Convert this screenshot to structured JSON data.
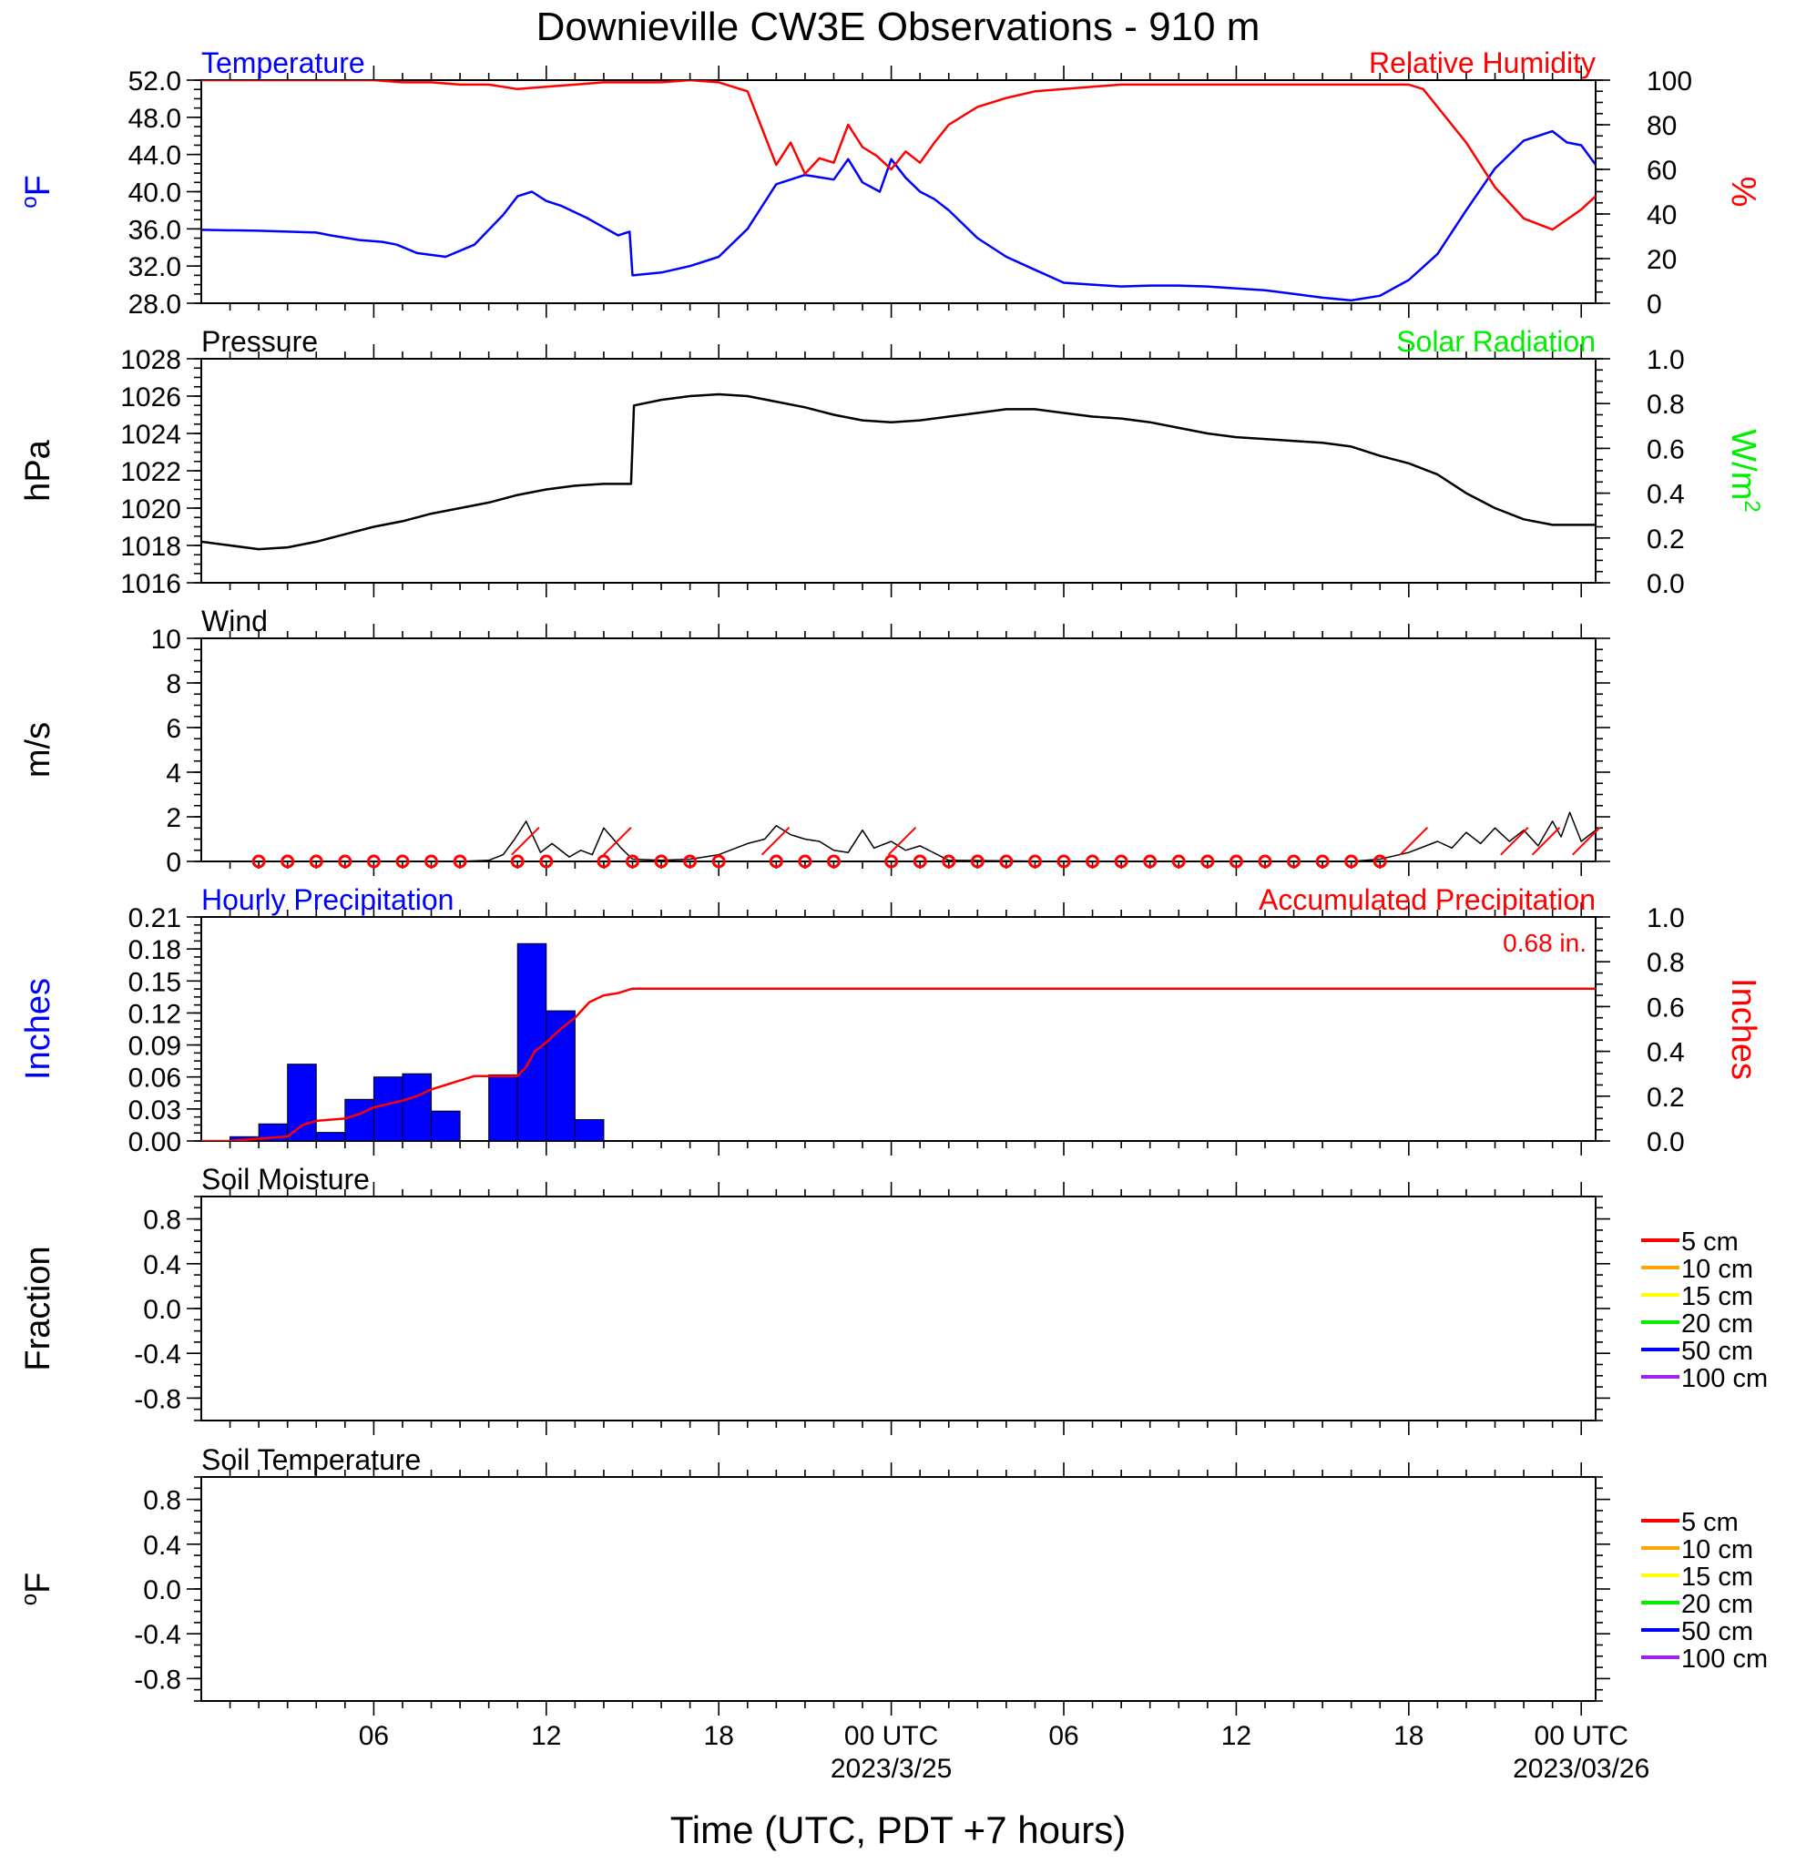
{
  "chart_data": [
    {
      "type": "line",
      "title": "Downieville CW3E Observations - 910 m",
      "panel": "temperature_humidity",
      "left_label": "Temperature",
      "right_label": "Relative Humidity",
      "ylabel_left": "oF",
      "ylabel_right": "%",
      "ylim_left": [
        28,
        52
      ],
      "yticks_left": [
        "52.0",
        "48.0",
        "44.0",
        "40.0",
        "36.0",
        "32.0",
        "28.0"
      ],
      "ylim_right": [
        0,
        100
      ],
      "yticks_right": [
        "100",
        "80",
        "60",
        "40",
        "20",
        "0"
      ],
      "colors": {
        "temperature": "#0000ff",
        "humidity": "#ff0000"
      },
      "series": [
        {
          "name": "Temperature",
          "axis": "left",
          "x_hours": [
            0,
            2,
            3,
            4,
            4.5,
            5.5,
            6.3,
            6.8,
            7.5,
            8.5,
            9.5,
            10.5,
            11,
            11.5,
            12,
            12.5,
            13.4,
            13.8,
            14.5,
            14.9,
            15,
            16,
            17,
            18,
            19,
            20,
            21,
            22,
            22.5,
            23,
            23.6,
            24,
            24.5,
            25,
            25.5,
            26,
            27,
            28,
            29,
            30,
            31,
            32,
            33,
            34,
            35,
            36,
            37,
            38,
            39,
            40,
            41,
            42,
            43,
            44,
            45,
            46,
            47,
            47.5,
            48,
            48.5
          ],
          "values": [
            35.9,
            35.8,
            35.7,
            35.6,
            35.3,
            34.8,
            34.6,
            34.3,
            33.4,
            33.0,
            34.3,
            37.5,
            39.5,
            40.0,
            39.0,
            38.5,
            37.2,
            36.5,
            35.3,
            35.7,
            31.0,
            31.3,
            32.0,
            33.0,
            36.0,
            40.8,
            41.8,
            41.3,
            43.5,
            41.0,
            40.0,
            43.5,
            41.5,
            40.0,
            39.2,
            38.0,
            35.0,
            33.0,
            31.6,
            30.2,
            30.0,
            29.8,
            29.9,
            29.9,
            29.8,
            29.6,
            29.4,
            29.0,
            28.6,
            28.3,
            28.8,
            30.5,
            33.3,
            38.0,
            42.5,
            45.5,
            46.5,
            45.3,
            45.0,
            42.9
          ]
        },
        {
          "name": "Relative Humidity",
          "axis": "right",
          "x_hours": [
            0,
            2,
            4,
            6,
            7,
            8,
            9,
            10,
            11,
            12,
            13,
            14,
            15,
            16,
            17,
            18,
            19,
            20,
            20.5,
            21,
            21.5,
            22,
            22.5,
            23,
            23.5,
            24,
            24.5,
            25,
            25.5,
            26,
            27,
            28,
            29,
            30,
            31,
            32,
            33,
            34,
            35,
            36,
            37,
            38,
            39,
            40,
            41,
            42,
            42.5,
            43,
            44,
            45,
            46,
            47,
            48,
            48.5
          ],
          "values": [
            100,
            100,
            100,
            100,
            99,
            99,
            98,
            98,
            96,
            97,
            98,
            99,
            99,
            99,
            100,
            99,
            95,
            62,
            72,
            58,
            65,
            63,
            80,
            70,
            66,
            60,
            68,
            63,
            72,
            80,
            88,
            92,
            95,
            96,
            97,
            98,
            98,
            98,
            98,
            98,
            98,
            98,
            98,
            98,
            98,
            98,
            96,
            88,
            72,
            52,
            38,
            33,
            42,
            48
          ]
        }
      ]
    },
    {
      "type": "line",
      "panel": "pressure",
      "left_label": "Pressure",
      "right_label": "Solar Radiation",
      "ylabel_left": "hPa",
      "ylabel_right": "W/m2",
      "ylim_left": [
        1016,
        1028
      ],
      "yticks_left": [
        "1028",
        "1026",
        "1024",
        "1022",
        "1020",
        "1018",
        "1016"
      ],
      "ylim_right": [
        0,
        1
      ],
      "yticks_right": [
        "1.0",
        "0.8",
        "0.6",
        "0.4",
        "0.2",
        "0.0"
      ],
      "colors": {
        "pressure": "#000000",
        "solar": "#00ee00"
      },
      "series": [
        {
          "name": "Pressure",
          "axis": "left",
          "x_hours": [
            0,
            1,
            2,
            3,
            4,
            5,
            6,
            7,
            8,
            9,
            10,
            11,
            12,
            13,
            14,
            14.95,
            15.05,
            16,
            17,
            18,
            19,
            20,
            21,
            22,
            23,
            24,
            25,
            26,
            27,
            28,
            29,
            30,
            31,
            32,
            33,
            34,
            35,
            36,
            37,
            38,
            39,
            40,
            41,
            42,
            43,
            44,
            45,
            46,
            47,
            48,
            48.5
          ],
          "values": [
            1018.2,
            1018.0,
            1017.8,
            1017.9,
            1018.2,
            1018.6,
            1019.0,
            1019.3,
            1019.7,
            1020.0,
            1020.3,
            1020.7,
            1021.0,
            1021.2,
            1021.3,
            1021.3,
            1025.5,
            1025.8,
            1026.0,
            1026.1,
            1026.0,
            1025.7,
            1025.4,
            1025.0,
            1024.7,
            1024.6,
            1024.7,
            1024.9,
            1025.1,
            1025.3,
            1025.3,
            1025.1,
            1024.9,
            1024.8,
            1024.6,
            1024.3,
            1024.0,
            1023.8,
            1023.7,
            1023.6,
            1023.5,
            1023.3,
            1022.8,
            1022.4,
            1021.8,
            1020.8,
            1020.0,
            1019.4,
            1019.1,
            1019.1,
            1019.1
          ]
        }
      ]
    },
    {
      "type": "line",
      "panel": "wind",
      "left_label": "Wind",
      "ylabel_left": "m/s",
      "ylim_left": [
        0,
        10
      ],
      "yticks_left": [
        "10",
        "8",
        "6",
        "4",
        "2",
        "0"
      ],
      "colors": {
        "speed": "#000000",
        "barb": "#ff0000"
      },
      "series": [
        {
          "name": "Wind",
          "x_hours": [
            0,
            5,
            9,
            10,
            10.5,
            10.9,
            11.3,
            11.8,
            12.2,
            12.8,
            13.2,
            13.6,
            14,
            14.6,
            15,
            16,
            17,
            17.5,
            18,
            18.6,
            19,
            19.6,
            20,
            20.5,
            21,
            21.5,
            22,
            22.5,
            23,
            23.4,
            24,
            24.5,
            25,
            26,
            30,
            35,
            40,
            41,
            42,
            43,
            43.5,
            44,
            44.5,
            45,
            45.5,
            46,
            46.5,
            47,
            47.3,
            47.6,
            48,
            48.5
          ],
          "values": [
            0,
            0,
            0,
            0.05,
            0.3,
            1.0,
            1.8,
            0.4,
            0.8,
            0.2,
            0.5,
            0.3,
            1.5,
            0.6,
            0.1,
            0.05,
            0.1,
            0.2,
            0.3,
            0.6,
            0.8,
            1.0,
            1.6,
            1.2,
            1.0,
            0.9,
            0.5,
            0.4,
            1.4,
            0.6,
            0.9,
            0.5,
            0.7,
            0.05,
            0,
            0,
            0,
            0.1,
            0.4,
            0.9,
            0.6,
            1.3,
            0.8,
            1.5,
            0.9,
            1.4,
            0.7,
            1.8,
            1.1,
            2.2,
            0.9,
            1.4
          ]
        }
      ],
      "barb_hours": [
        10.8,
        14,
        19.5,
        23.9,
        41.7,
        45.2,
        46.3,
        47.7
      ],
      "calm_markers_hours": [
        2,
        3,
        4,
        5,
        6,
        7,
        8,
        9,
        11,
        12,
        14,
        15,
        16,
        17,
        18,
        20,
        21,
        22,
        24,
        25,
        26,
        27,
        28,
        29,
        30,
        31,
        32,
        33,
        34,
        35,
        36,
        37,
        38,
        39,
        40,
        41
      ]
    },
    {
      "type": "bar",
      "panel": "precipitation",
      "left_label": "Hourly Precipitation",
      "right_label": "Accumulated Precipitation",
      "total_label": "0.68 in.",
      "ylabel_left": "Inches",
      "ylabel_right": "Inches",
      "ylim_left": [
        0,
        0.21
      ],
      "yticks_left": [
        "0.21",
        "0.18",
        "0.15",
        "0.12",
        "0.09",
        "0.06",
        "0.03",
        "0.00"
      ],
      "ylim_right": [
        0,
        1
      ],
      "yticks_right": [
        "1.0",
        "0.8",
        "0.6",
        "0.4",
        "0.2",
        "0.0"
      ],
      "colors": {
        "hourly": "#0000ff",
        "accumulated": "#ff0000"
      },
      "bars": {
        "name": "Hourly Precipitation",
        "start_hours": [
          1,
          2,
          3,
          4,
          5,
          6,
          7,
          8,
          10,
          11,
          12,
          13
        ],
        "values": [
          0.004,
          0.016,
          0.072,
          0.008,
          0.039,
          0.06,
          0.063,
          0.028,
          0.062,
          0.185,
          0.122,
          0.02
        ]
      },
      "series": [
        {
          "name": "Accumulated Precipitation",
          "axis": "right",
          "x_hours": [
            0,
            1,
            2,
            3,
            3.5,
            4,
            5,
            5.5,
            6,
            7,
            7.5,
            8,
            8.5,
            9,
            9.5,
            10,
            11,
            11.3,
            11.6,
            12,
            12.5,
            13,
            13.5,
            14,
            14.5,
            15,
            48.5
          ],
          "values": [
            0,
            0,
            0.01,
            0.02,
            0.07,
            0.09,
            0.1,
            0.12,
            0.15,
            0.18,
            0.2,
            0.23,
            0.25,
            0.27,
            0.29,
            0.29,
            0.29,
            0.33,
            0.4,
            0.44,
            0.5,
            0.55,
            0.62,
            0.65,
            0.66,
            0.68,
            0.68
          ]
        }
      ]
    },
    {
      "type": "line",
      "panel": "soil_moisture",
      "left_label": "Soil Moisture",
      "ylabel_left": "Fraction",
      "yticks_left": [
        "0.8",
        "0.4",
        "0.0",
        "-0.4",
        "-0.8"
      ],
      "legend": [
        "5 cm",
        "10 cm",
        "15 cm",
        "20 cm",
        "50 cm",
        "100 cm"
      ],
      "legend_colors": [
        "#ff0000",
        "#ffa500",
        "#ffff00",
        "#00ee00",
        "#0000ff",
        "#a020f0"
      ],
      "series": []
    },
    {
      "type": "line",
      "panel": "soil_temperature",
      "left_label": "Soil Temperature",
      "ylabel_left": "oF",
      "yticks_left": [
        "0.8",
        "0.4",
        "0.0",
        "-0.4",
        "-0.8"
      ],
      "legend": [
        "5 cm",
        "10 cm",
        "15 cm",
        "20 cm",
        "50 cm",
        "100 cm"
      ],
      "legend_colors": [
        "#ff0000",
        "#ffa500",
        "#ffff00",
        "#00ee00",
        "#0000ff",
        "#a020f0"
      ],
      "series": []
    }
  ],
  "x_axis": {
    "xlabel": "Time (UTC, PDT +7 hours)",
    "range_hours": [
      0,
      48.5
    ],
    "major_ticks_hours": [
      6,
      12,
      18,
      24,
      30,
      36,
      42,
      48
    ],
    "major_tick_labels": [
      "06",
      "12",
      "18",
      "00 UTC",
      "06",
      "12",
      "18",
      "00 UTC"
    ],
    "date_labels": [
      {
        "hour": 24,
        "text": "2023/3/25"
      },
      {
        "hour": 48,
        "text": "2023/03/26"
      }
    ]
  }
}
